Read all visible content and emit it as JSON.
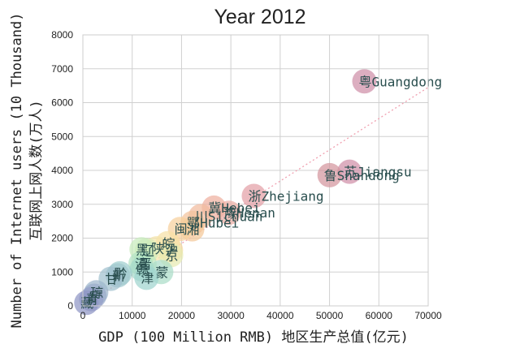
{
  "chart_data": {
    "type": "scatter",
    "title": "Year 2012",
    "xlabel": "GDP (100 Million RMB) 地区生产总值(亿元)",
    "ylabel_line1": "Number of Internet users (10 Thousand)",
    "ylabel_line2": "互联网上网人数(万人)",
    "xlim": [
      0,
      70000
    ],
    "ylim": [
      0,
      8000
    ],
    "xticks": [
      0,
      10000,
      20000,
      30000,
      40000,
      50000,
      60000,
      70000
    ],
    "yticks": [
      0,
      1000,
      2000,
      3000,
      4000,
      5000,
      6000,
      7000,
      8000
    ],
    "grid": true,
    "trendline": {
      "x": [
        0,
        70000
      ],
      "y": [
        0,
        6450
      ],
      "color": "#f0a0b0",
      "style": "dotted"
    },
    "points": [
      {
        "x": 57068,
        "y": 6628,
        "label": "粤Guangdong",
        "color": "#cf8fa8"
      },
      {
        "x": 54058,
        "y": 3960,
        "label": "苏Jiangsu",
        "color": "#d08fa8"
      },
      {
        "x": 50013,
        "y": 3860,
        "label": "鲁Shandong",
        "color": "#d4969e"
      },
      {
        "x": 34665,
        "y": 3247,
        "label": "浙Zhejiang",
        "color": "#e3a0a6"
      },
      {
        "x": 29599,
        "y": 2750,
        "label": "豫Henan",
        "color": "#ebafa5"
      },
      {
        "x": 26575,
        "y": 2900,
        "label": "冀Hebei",
        "color": "#efb0a0"
      },
      {
        "x": 23872,
        "y": 2650,
        "label": "川Sichuan",
        "color": "#f1bb9e"
      },
      {
        "x": 22250,
        "y": 2450,
        "label": "鄂Hubei",
        "color": "#f3c39c"
      },
      {
        "x": 22154,
        "y": 2260,
        "label": "湘",
        "color": "#f4c899"
      },
      {
        "x": 19701,
        "y": 2270,
        "label": "闽",
        "color": "#f6d09c"
      },
      {
        "x": 17848,
        "y": 1650,
        "label": "沪",
        "color": "#f6da9e"
      },
      {
        "x": 17200,
        "y": 1850,
        "label": "皖",
        "color": "#f7e0a6"
      },
      {
        "x": 15000,
        "y": 1700,
        "label": "陕",
        "color": "#f5e4ab"
      },
      {
        "x": 17879,
        "y": 1500,
        "label": "京",
        "color": "#e6eab2"
      },
      {
        "x": 13000,
        "y": 1640,
        "label": "辽",
        "color": "#d7ecb8"
      },
      {
        "x": 11900,
        "y": 1670,
        "label": "黑",
        "color": "#c7ebbd"
      },
      {
        "x": 12500,
        "y": 1250,
        "label": "晋",
        "color": "#bde8c0"
      },
      {
        "x": 11700,
        "y": 1250,
        "label": "滇",
        "color": "#b3e3c4"
      },
      {
        "x": 15880,
        "y": 1000,
        "label": "蒙",
        "color": "#aaddc8"
      },
      {
        "x": 11939,
        "y": 1080,
        "label": "赣",
        "color": "#a5d9cb"
      },
      {
        "x": 12894,
        "y": 830,
        "label": "津",
        "color": "#a0d4ce"
      },
      {
        "x": 7500,
        "y": 960,
        "label": "黔",
        "color": "#a0cfcf"
      },
      {
        "x": 7100,
        "y": 900,
        "label": "新",
        "color": "#a1c9cf"
      },
      {
        "x": 5650,
        "y": 800,
        "label": "甘",
        "color": "#a1c0ce"
      },
      {
        "x": 2700,
        "y": 400,
        "label": "琼",
        "color": "#9eb7cd"
      },
      {
        "x": 2340,
        "y": 300,
        "label": "宁",
        "color": "#9aaccb"
      },
      {
        "x": 1700,
        "y": 200,
        "label": "青",
        "color": "#95a0c9"
      },
      {
        "x": 700,
        "y": 90,
        "label": "藏",
        "color": "#8f95c5"
      }
    ]
  }
}
